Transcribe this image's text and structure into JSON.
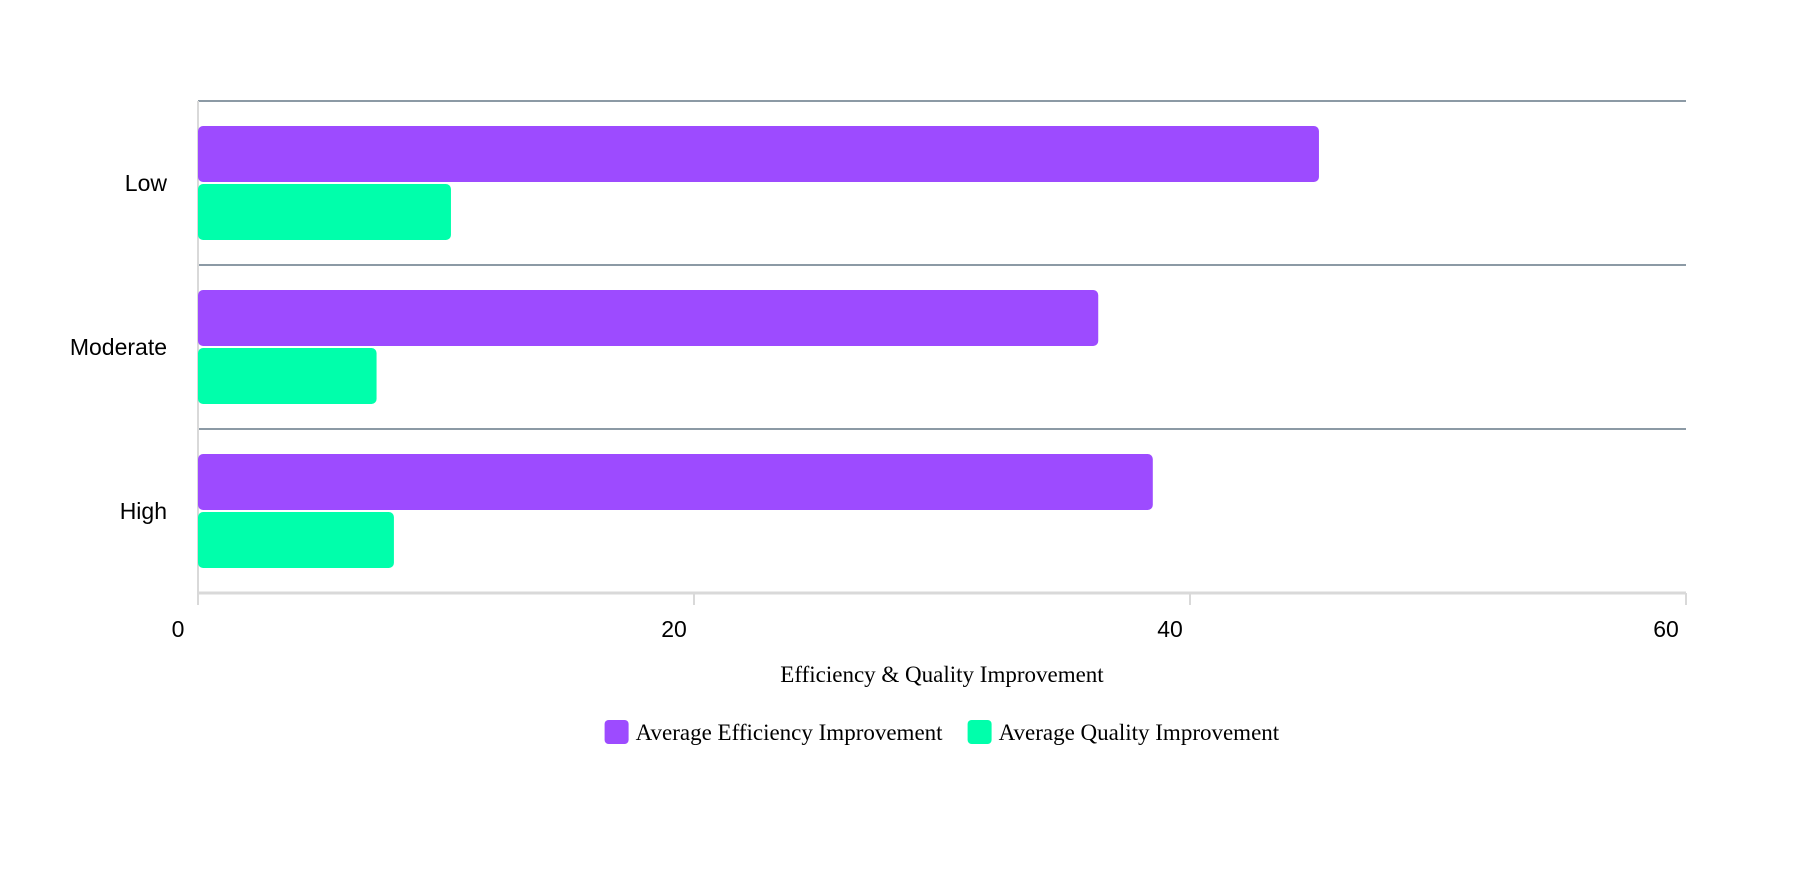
{
  "chart_data": {
    "type": "bar",
    "orientation": "horizontal",
    "categories": [
      "Low",
      "Moderate",
      "High"
    ],
    "series": [
      {
        "name": "Average Efficiency Improvement",
        "color": "#9d4bff",
        "values": [
          45.2,
          36.3,
          38.5
        ]
      },
      {
        "name": "Average Quality Improvement",
        "color": "#00ffab",
        "values": [
          10.2,
          7.2,
          7.9
        ]
      }
    ],
    "xlabel": "Efficiency & Quality Improvement",
    "ylabel": "",
    "xlim": [
      0,
      60
    ],
    "xticks": [
      "0",
      "20",
      "40",
      "60"
    ],
    "grid": true,
    "legend_position": "bottom"
  }
}
